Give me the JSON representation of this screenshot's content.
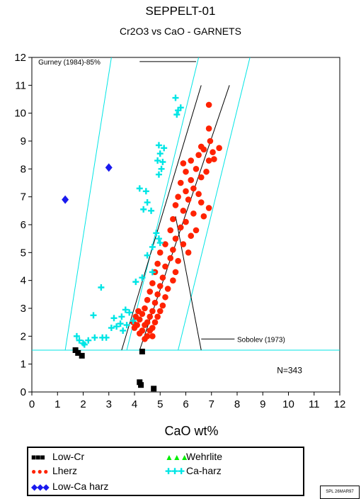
{
  "chart_data": {
    "type": "scatter",
    "title": "SEPPELT-01",
    "subtitle": "Cr2O3 vs CaO - GARNETS",
    "xlabel": "CaO wt%",
    "ylabel": "",
    "xlim": [
      0,
      12
    ],
    "ylim": [
      0,
      12
    ],
    "xticks": [
      "0",
      "1",
      "2",
      "3",
      "4",
      "5",
      "6",
      "7",
      "8",
      "9",
      "10",
      "11",
      "12"
    ],
    "yticks": [
      "0",
      "1",
      "2",
      "3",
      "4",
      "5",
      "6",
      "7",
      "8",
      "9",
      "10",
      "11",
      "12"
    ],
    "annotations": {
      "gurney": "Gurney (1984)-85%",
      "sobolev": "Sobolev (1973)",
      "n": "N=343"
    },
    "reference_lines": {
      "gurney_segment": [
        [
          4.2,
          11.85
        ],
        [
          6.4,
          11.85
        ]
      ],
      "horizontal_cut": [
        [
          0,
          1.5
        ],
        [
          12,
          1.5
        ]
      ],
      "cyan_diagonals": [
        [
          [
            1.3,
            1.5
          ],
          [
            3.1,
            12
          ]
        ],
        [
          [
            3.7,
            1.5
          ],
          [
            6.5,
            12
          ]
        ],
        [
          [
            5.7,
            1.5
          ],
          [
            8.5,
            12
          ]
        ]
      ],
      "black_diagonals": [
        [
          [
            3.5,
            1.5
          ],
          [
            6.6,
            11
          ]
        ],
        [
          [
            4.2,
            1.5
          ],
          [
            7.7,
            11
          ]
        ]
      ],
      "sobolev_line": [
        [
          5.6,
          6.3
        ],
        [
          6.6,
          1.5
        ]
      ],
      "sobolev_leader": [
        [
          6.6,
          1.9
        ],
        [
          7.9,
          1.9
        ]
      ]
    },
    "series": [
      {
        "name": "Low-Cr",
        "color": "#000000",
        "marker": "square",
        "points": [
          [
            1.7,
            1.5
          ],
          [
            1.8,
            1.4
          ],
          [
            1.95,
            1.3
          ],
          [
            4.3,
            1.45
          ],
          [
            4.2,
            0.35
          ],
          [
            4.25,
            0.25
          ],
          [
            4.75,
            0.12
          ]
        ]
      },
      {
        "name": "Lherz",
        "color": "#ff2200",
        "marker": "circle",
        "points": [
          [
            6.9,
            10.3
          ],
          [
            6.9,
            9.45
          ],
          [
            6.95,
            9.0
          ],
          [
            6.6,
            8.8
          ],
          [
            6.7,
            8.7
          ],
          [
            7.05,
            8.6
          ],
          [
            7.3,
            8.75
          ],
          [
            6.5,
            8.5
          ],
          [
            6.9,
            8.3
          ],
          [
            7.1,
            8.35
          ],
          [
            6.2,
            8.3
          ],
          [
            5.9,
            8.2
          ],
          [
            6.4,
            8.0
          ],
          [
            6.0,
            7.9
          ],
          [
            6.8,
            7.9
          ],
          [
            6.6,
            7.7
          ],
          [
            6.2,
            7.6
          ],
          [
            5.8,
            7.5
          ],
          [
            6.3,
            7.3
          ],
          [
            6.0,
            7.2
          ],
          [
            6.5,
            7.1
          ],
          [
            5.7,
            7.0
          ],
          [
            6.1,
            6.9
          ],
          [
            6.6,
            6.8
          ],
          [
            5.6,
            6.7
          ],
          [
            6.9,
            6.6
          ],
          [
            5.9,
            6.5
          ],
          [
            6.3,
            6.4
          ],
          [
            6.7,
            6.3
          ],
          [
            5.5,
            6.2
          ],
          [
            6.0,
            6.1
          ],
          [
            5.8,
            5.9
          ],
          [
            6.4,
            5.8
          ],
          [
            5.4,
            5.8
          ],
          [
            6.2,
            5.6
          ],
          [
            5.6,
            5.5
          ],
          [
            5.9,
            5.3
          ],
          [
            5.2,
            5.3
          ],
          [
            5.5,
            5.1
          ],
          [
            6.1,
            5.0
          ],
          [
            5.0,
            5.0
          ],
          [
            5.4,
            4.8
          ],
          [
            5.7,
            4.7
          ],
          [
            4.9,
            4.6
          ],
          [
            5.2,
            4.5
          ],
          [
            5.6,
            4.3
          ],
          [
            4.8,
            4.3
          ],
          [
            5.1,
            4.1
          ],
          [
            5.5,
            4.0
          ],
          [
            4.7,
            3.9
          ],
          [
            5.0,
            3.8
          ],
          [
            5.3,
            3.7
          ],
          [
            4.6,
            3.6
          ],
          [
            4.9,
            3.5
          ],
          [
            5.2,
            3.4
          ],
          [
            4.5,
            3.3
          ],
          [
            4.8,
            3.2
          ],
          [
            5.1,
            3.1
          ],
          [
            4.4,
            3.0
          ],
          [
            4.7,
            2.9
          ],
          [
            5.0,
            2.9
          ],
          [
            4.3,
            2.8
          ],
          [
            4.6,
            2.7
          ],
          [
            4.9,
            2.7
          ],
          [
            4.2,
            2.6
          ],
          [
            4.5,
            2.5
          ],
          [
            4.8,
            2.5
          ],
          [
            4.1,
            2.4
          ],
          [
            4.4,
            2.4
          ],
          [
            4.7,
            2.3
          ],
          [
            4.0,
            2.3
          ],
          [
            4.3,
            2.2
          ],
          [
            4.6,
            2.2
          ],
          [
            4.2,
            2.1
          ],
          [
            4.5,
            2.0
          ],
          [
            4.4,
            1.9
          ],
          [
            4.7,
            2.0
          ],
          [
            3.95,
            2.5
          ],
          [
            4.05,
            2.7
          ],
          [
            4.15,
            2.9
          ]
        ]
      },
      {
        "name": "Low-Ca harz",
        "color": "#1a1aee",
        "marker": "diamond",
        "points": [
          [
            1.3,
            6.9
          ],
          [
            3.0,
            8.05
          ]
        ]
      },
      {
        "name": "Wehrlite",
        "color": "#00ee00",
        "marker": "triangle",
        "points": []
      },
      {
        "name": "Ca-harz",
        "color": "#00e5e5",
        "marker": "plus",
        "points": [
          [
            5.6,
            10.55
          ],
          [
            5.7,
            10.1
          ],
          [
            5.65,
            9.95
          ],
          [
            5.8,
            10.2
          ],
          [
            4.95,
            8.85
          ],
          [
            5.15,
            8.75
          ],
          [
            5.0,
            8.55
          ],
          [
            4.9,
            8.3
          ],
          [
            5.1,
            8.25
          ],
          [
            5.05,
            8.0
          ],
          [
            4.95,
            7.8
          ],
          [
            4.2,
            7.3
          ],
          [
            4.45,
            7.2
          ],
          [
            4.5,
            6.8
          ],
          [
            4.35,
            6.55
          ],
          [
            4.65,
            6.5
          ],
          [
            4.85,
            5.7
          ],
          [
            4.95,
            5.5
          ],
          [
            5.0,
            5.35
          ],
          [
            4.7,
            5.2
          ],
          [
            4.5,
            4.9
          ],
          [
            4.7,
            4.3
          ],
          [
            4.3,
            4.1
          ],
          [
            4.05,
            3.95
          ],
          [
            2.7,
            3.75
          ],
          [
            2.4,
            2.75
          ],
          [
            3.2,
            2.65
          ],
          [
            3.5,
            2.7
          ],
          [
            3.65,
            2.95
          ],
          [
            3.8,
            2.85
          ],
          [
            3.3,
            2.35
          ],
          [
            3.45,
            2.45
          ],
          [
            3.7,
            2.4
          ],
          [
            3.95,
            2.55
          ],
          [
            3.1,
            2.3
          ],
          [
            3.55,
            2.2
          ],
          [
            2.9,
            1.95
          ],
          [
            2.75,
            1.95
          ],
          [
            2.45,
            1.95
          ],
          [
            1.75,
            2.0
          ],
          [
            1.85,
            1.85
          ],
          [
            2.0,
            1.75
          ],
          [
            2.2,
            1.85
          ],
          [
            2.05,
            1.7
          ]
        ]
      }
    ],
    "legend": {
      "position": "bottom",
      "entries": [
        {
          "label": "Low-Cr",
          "symbol": "■■■",
          "color": "#000000"
        },
        {
          "label": "Wehrlite",
          "symbol": "▲▲▲",
          "color": "#00ee00"
        },
        {
          "label": "Lherz",
          "symbol": "● ● ●",
          "color": "#ff2200"
        },
        {
          "label": "Ca-harz",
          "symbol": "✚✚✚",
          "color": "#00e5e5"
        },
        {
          "label": "Low-Ca harz",
          "symbol": "◆◆◆",
          "color": "#1a1aee"
        }
      ]
    },
    "grid": false
  },
  "stamp": "SPL 26MAR97"
}
